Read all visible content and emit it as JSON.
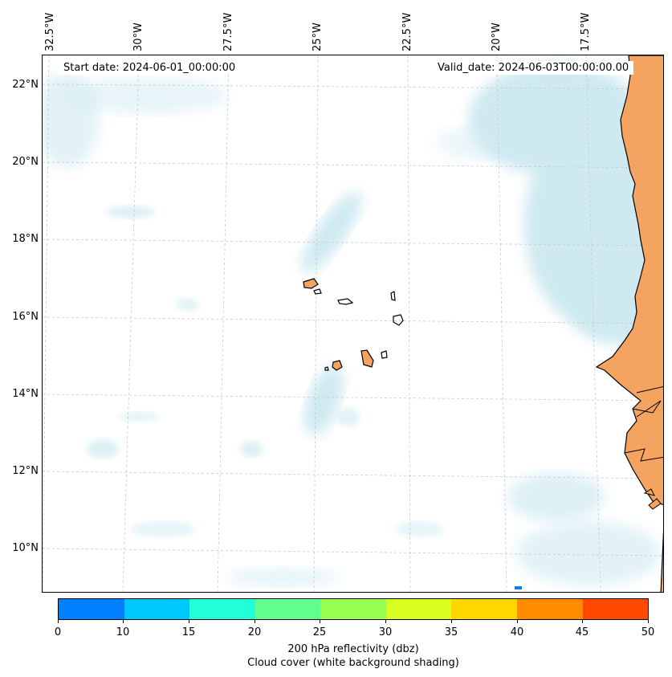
{
  "map": {
    "start_date": "Start date: 2024-06-01_00:00:00",
    "valid_date": "Valid_date: 2024-06-03T00:00:00.00",
    "lon_labels": [
      "32.5°W",
      "30°W",
      "27.5°W",
      "25°W",
      "22.5°W",
      "20°W",
      "17.5°W"
    ],
    "lat_labels": [
      "22°N",
      "20°N",
      "18°N",
      "16°N",
      "14°N",
      "12°N",
      "10°N"
    ],
    "colors": {
      "cloud": "#a8d8e6",
      "land_high_reflectivity": "#f4a460",
      "coastline": "#000000",
      "gridline": "#c8c8c8"
    }
  },
  "colorbar": {
    "label_line1": "200 hPa reflectivity (dbz)",
    "label_line2": "Cloud cover (white background shading)",
    "ticks": [
      "0",
      "10",
      "15",
      "20",
      "25",
      "30",
      "35",
      "40",
      "45",
      "50"
    ],
    "colors": [
      "#0080ff",
      "#00c8ff",
      "#20ffd8",
      "#60ff90",
      "#98ff50",
      "#d8ff20",
      "#ffd800",
      "#ff8c00",
      "#ff4800"
    ]
  }
}
